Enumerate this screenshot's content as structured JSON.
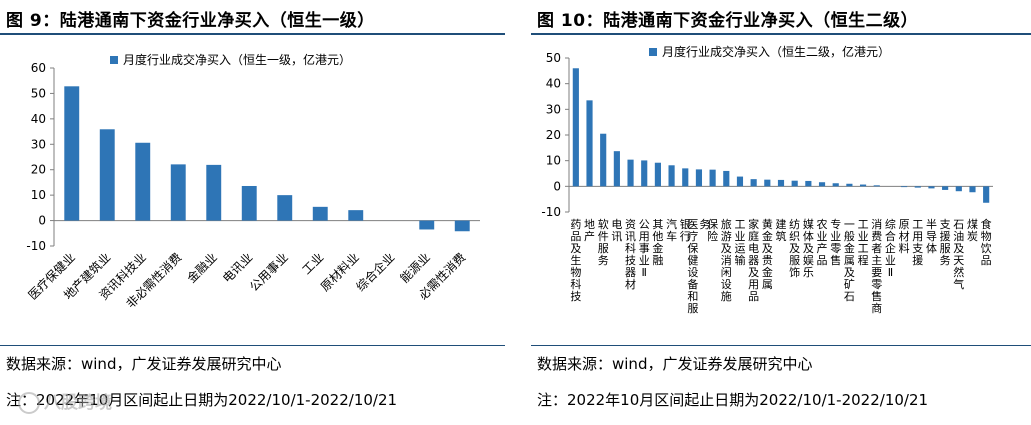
{
  "left": {
    "fig_title": "图  9：陆港通南下资金行业净买入（恒生一级）",
    "source": "数据来源：wind，广发证券发展研究中心",
    "note": "注：2022年10月区间起止日期为2022/10/1-2022/10/21",
    "watermark": "八股跨境"
  },
  "right": {
    "fig_title": "图  10：陆港通南下资金行业净买入（恒生二级）",
    "source": "数据来源：wind，广发证券发展研究中心",
    "note": "注：2022年10月区间起止日期为2022/10/1-2022/10/21"
  },
  "colors": {
    "bar": "#2e75b6",
    "title_rule": "#1f4e79"
  },
  "chart_data": [
    {
      "type": "bar",
      "title": "",
      "xlabel": "",
      "ylabel": "",
      "ylim": [
        -10,
        60
      ],
      "yticks": [
        -10,
        0,
        10,
        20,
        30,
        40,
        50,
        60
      ],
      "grid": false,
      "legend_position": "top",
      "categories": [
        "医疗保健业",
        "地产建筑业",
        "资讯科技业",
        "非必需性消费",
        "金融业",
        "电讯业",
        "公用事业",
        "工业",
        "原材料业",
        "综合企业",
        "能源业",
        "必需性消费"
      ],
      "series": [
        {
          "name": "月度行业成交净买入（恒生一级，亿港元）",
          "values": [
            52.8,
            35.9,
            30.6,
            22.1,
            21.9,
            13.6,
            10.0,
            5.4,
            4.1,
            0.0,
            -3.5,
            -4.2
          ]
        }
      ]
    },
    {
      "type": "bar",
      "title": "",
      "xlabel": "",
      "ylabel": "",
      "ylim": [
        -10,
        50
      ],
      "yticks": [
        -10,
        0,
        10,
        20,
        30,
        40,
        50
      ],
      "grid": false,
      "legend_position": "top",
      "categories": [
        "药品及生物科技",
        "地产",
        "软件服务",
        "电讯",
        "资讯科技器材",
        "公用事业Ⅱ",
        "其他金融",
        "汽车",
        "银行",
        "医疗保健设备和服务",
        "保险",
        "旅游及消闲设施",
        "工业运输",
        "家庭电器及用品",
        "黄金及贵金属",
        "建筑",
        "纺织及服饰",
        "媒体及娱乐",
        "农业产品",
        "专业零售",
        "一般金属及矿石",
        "工业工程",
        "消费者主要零售商",
        "综合企业Ⅱ",
        "原材料",
        "工用支援",
        "半导体",
        "支援服务",
        "石油及天然气",
        "煤炭",
        "食物饮品"
      ],
      "series": [
        {
          "name": "月度行业成交净买入（恒生二级，亿港元）",
          "values": [
            46.0,
            33.5,
            20.5,
            13.7,
            10.4,
            10.1,
            9.2,
            8.2,
            7.0,
            6.6,
            6.5,
            6.0,
            3.8,
            2.8,
            2.6,
            2.5,
            2.2,
            2.1,
            1.6,
            1.2,
            1.0,
            0.7,
            0.4,
            0.0,
            -0.3,
            -0.5,
            -0.8,
            -1.4,
            -1.9,
            -2.3,
            -6.4
          ]
        }
      ]
    }
  ]
}
